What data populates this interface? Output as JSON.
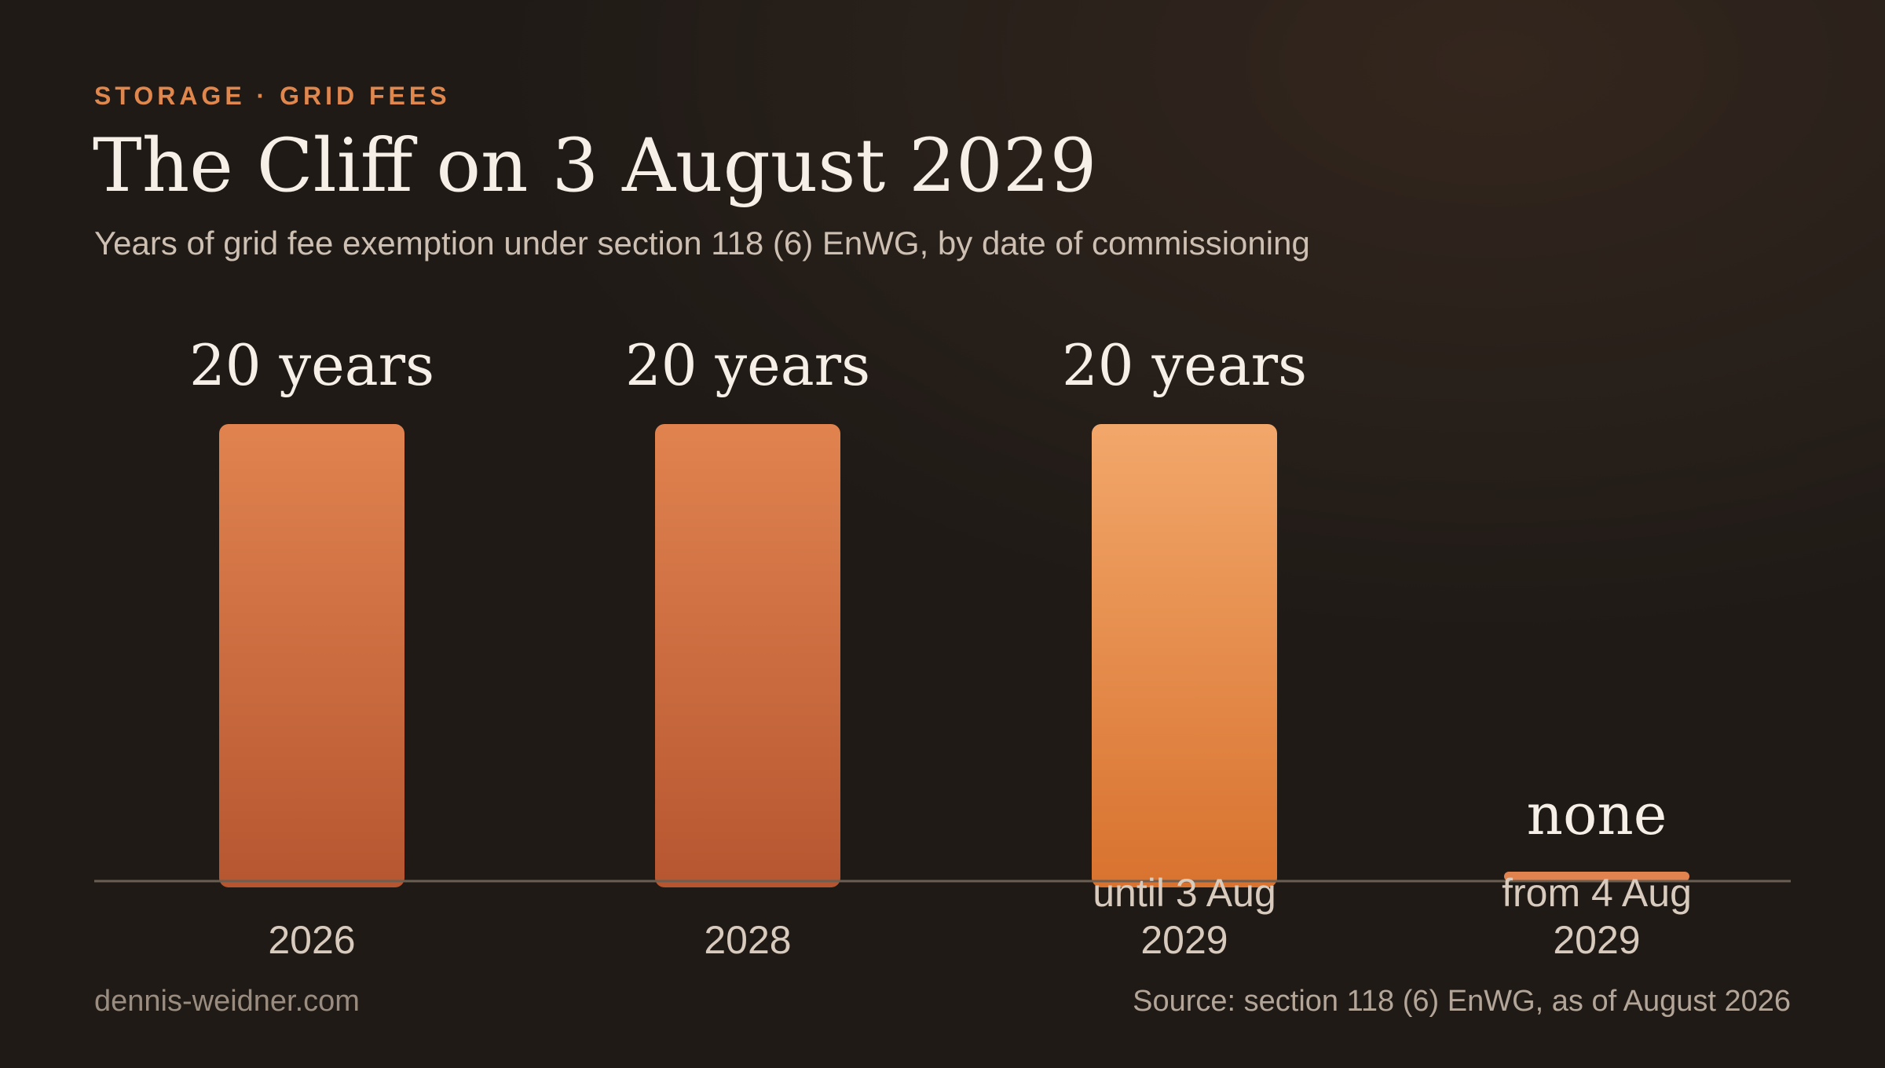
{
  "header": {
    "eyebrow": "STORAGE · GRID FEES",
    "title": "The Cliff on 3 August 2029",
    "subtitle": "Years of grid fee exemption under section 118 (6) EnWG, by date of commissioning"
  },
  "footer": {
    "site": "dennis-weidner.com",
    "source": "Source: section 118 (6) EnWG, as of August 2026"
  },
  "colors": {
    "accent": "#e0874e",
    "bar_top": "#e0834f",
    "bar_bottom": "#b65631",
    "highlight_top": "#f2a76a",
    "highlight_bottom": "#d8722f",
    "baseline": "#6b5f53"
  },
  "chart_data": {
    "type": "bar",
    "categories": [
      "2026",
      "2028",
      "until 3 Aug 2029",
      "from 4 Aug 2029"
    ],
    "category_lines": [
      [
        "2026"
      ],
      [
        "2028"
      ],
      [
        "until 3 Aug",
        "2029"
      ],
      [
        "from 4 Aug",
        "2029"
      ]
    ],
    "values": [
      20,
      20,
      20,
      0
    ],
    "value_labels": [
      "20 years",
      "20 years",
      "20 years",
      "none"
    ],
    "highlight_index": 2,
    "ylim": [
      0,
      20
    ],
    "grid": false,
    "legend": "none"
  }
}
